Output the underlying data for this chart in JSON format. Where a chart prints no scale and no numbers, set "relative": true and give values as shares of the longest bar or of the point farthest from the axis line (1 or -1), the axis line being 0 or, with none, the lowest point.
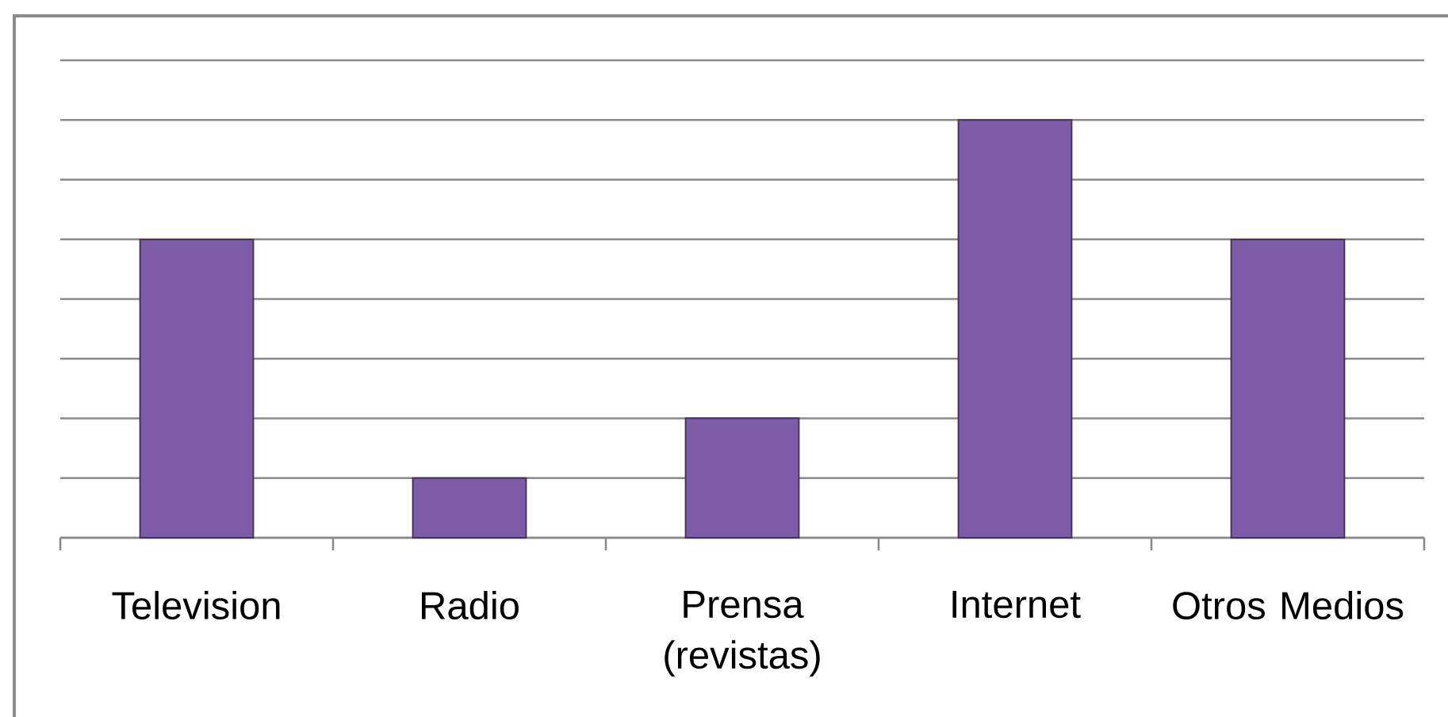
{
  "chart_data": {
    "type": "bar",
    "categories": [
      "Television",
      "Radio",
      "Prensa (revistas)",
      "Internet",
      "Otros Medios"
    ],
    "values": [
      0.714,
      0.143,
      0.286,
      1,
      0.714
    ],
    "color": "#7e5ca8",
    "relative": true,
    "grid": "y"
  }
}
